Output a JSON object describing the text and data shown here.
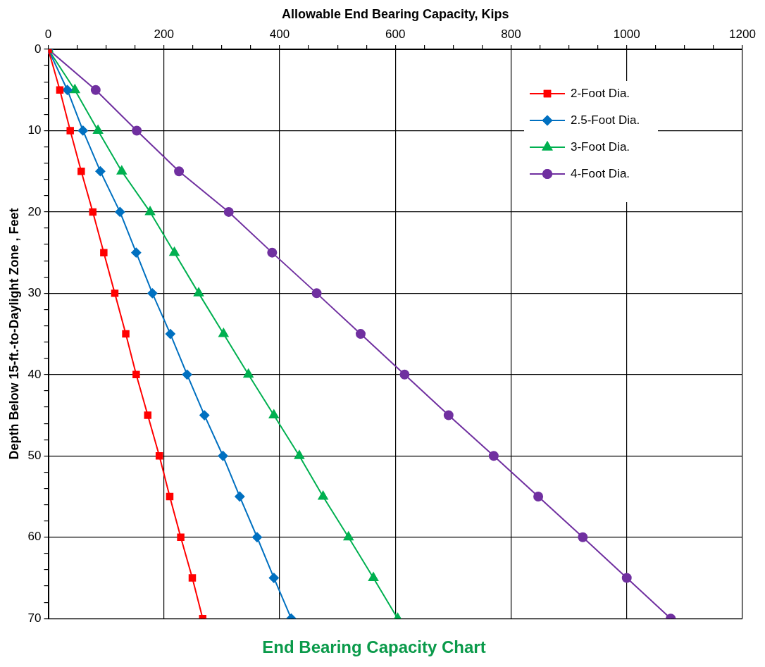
{
  "chart_data": {
    "type": "line",
    "title": "End Bearing Capacity Chart",
    "xlabel": "Allowable End Bearing Capacity, Kips",
    "ylabel": "Depth Below 15-ft.-to-Daylight Zone , Feet",
    "xlim": [
      0,
      1200
    ],
    "xticks": [
      0,
      {
        "value": 50,
        "label": null
      },
      {
        "value": 100,
        "label": null
      },
      {
        "value": 150,
        "label": null
      },
      200,
      {
        "value": 250,
        "label": null
      },
      {
        "value": 300,
        "label": null
      },
      {
        "value": 350,
        "label": null
      },
      400,
      {
        "value": 450,
        "label": null
      },
      {
        "value": 500,
        "label": null
      },
      {
        "value": 550,
        "label": null
      },
      600,
      {
        "value": 650,
        "label": null
      },
      {
        "value": 700,
        "label": null
      },
      {
        "value": 750,
        "label": null
      },
      800,
      {
        "value": 850,
        "label": null
      },
      {
        "value": 900,
        "label": null
      },
      {
        "value": 950,
        "label": null
      },
      1000,
      {
        "value": 1050,
        "label": null
      },
      {
        "value": 1100,
        "label": null
      },
      {
        "value": 1150,
        "label": null
      },
      1200
    ],
    "ylim": [
      70,
      0
    ],
    "yticks": [
      0,
      {
        "value": 2,
        "label": null
      },
      {
        "value": 4,
        "label": null
      },
      {
        "value": 6,
        "label": null
      },
      {
        "value": 8,
        "label": null
      },
      10,
      {
        "value": 12,
        "label": null
      },
      {
        "value": 14,
        "label": null
      },
      {
        "value": 16,
        "label": null
      },
      {
        "value": 18,
        "label": null
      },
      20,
      {
        "value": 22,
        "label": null
      },
      {
        "value": 24,
        "label": null
      },
      {
        "value": 26,
        "label": null
      },
      {
        "value": 28,
        "label": null
      },
      30,
      {
        "value": 32,
        "label": null
      },
      {
        "value": 34,
        "label": null
      },
      {
        "value": 36,
        "label": null
      },
      {
        "value": 38,
        "label": null
      },
      40,
      {
        "value": 42,
        "label": null
      },
      {
        "value": 44,
        "label": null
      },
      {
        "value": 46,
        "label": null
      },
      {
        "value": 48,
        "label": null
      },
      50,
      {
        "value": 52,
        "label": null
      },
      {
        "value": 54,
        "label": null
      },
      {
        "value": 56,
        "label": null
      },
      {
        "value": 58,
        "label": null
      },
      60,
      {
        "value": 62,
        "label": null
      },
      {
        "value": 64,
        "label": null
      },
      {
        "value": 66,
        "label": null
      },
      {
        "value": 68,
        "label": null
      },
      70
    ],
    "grid": true,
    "legend": "top right",
    "line_style": "solid",
    "series": [
      {
        "name": "2-Foot Dia.",
        "color": "#ff0000",
        "marker": "square",
        "x": [
          0,
          20,
          38,
          57,
          77,
          96,
          115,
          134,
          152,
          172,
          192,
          210,
          229,
          249,
          267
        ],
        "values": [
          0,
          5,
          10,
          15,
          20,
          25,
          30,
          35,
          40,
          45,
          50,
          55,
          60,
          65,
          70
        ]
      },
      {
        "name": "2.5-Foot Dia.",
        "color": "#0070c0",
        "marker": "diamond",
        "x": [
          0,
          33,
          60,
          90,
          124,
          152,
          180,
          211,
          240,
          270,
          302,
          331,
          361,
          390,
          420
        ],
        "values": [
          0,
          5,
          10,
          15,
          20,
          25,
          30,
          35,
          40,
          45,
          50,
          55,
          60,
          65,
          70
        ]
      },
      {
        "name": "3-Foot Dia.",
        "color": "#00b050",
        "marker": "triangle",
        "x": [
          0,
          46,
          86,
          127,
          176,
          218,
          260,
          303,
          346,
          390,
          434,
          475,
          519,
          562,
          604
        ],
        "values": [
          0,
          5,
          10,
          15,
          20,
          25,
          30,
          35,
          40,
          45,
          50,
          55,
          60,
          65,
          70
        ]
      },
      {
        "name": "4-Foot Dia.",
        "color": "#7030a0",
        "marker": "circle",
        "x": [
          0,
          82,
          153,
          226,
          312,
          387,
          464,
          540,
          616,
          692,
          770,
          847,
          924,
          1000,
          1076
        ],
        "values": [
          0,
          5,
          10,
          15,
          20,
          25,
          30,
          35,
          40,
          45,
          50,
          55,
          60,
          65,
          70
        ]
      }
    ]
  }
}
